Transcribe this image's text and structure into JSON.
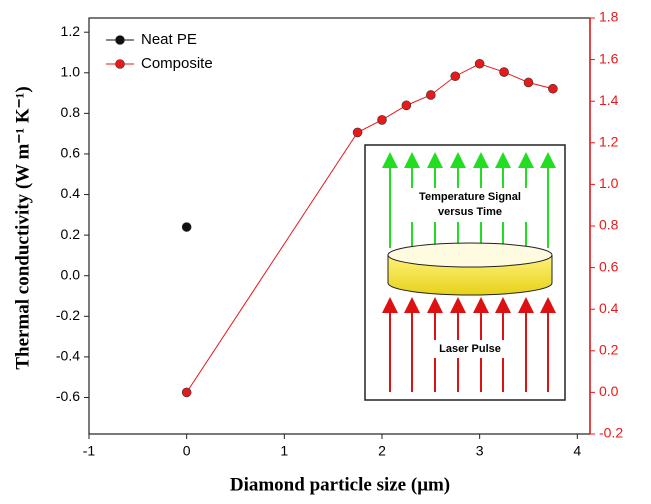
{
  "chart_data": {
    "type": "scatter",
    "xlabel": "Diamond particle size (μm)",
    "ylabel": "Thermal conductivity (W m⁻¹ K⁻¹)",
    "xlim": [
      -1,
      4.13
    ],
    "xticks": [
      -1,
      0,
      1,
      2,
      3,
      4
    ],
    "ylim": [
      -0.78,
      1.27
    ],
    "yticks": [
      -0.6,
      -0.4,
      -0.2,
      {
        "value": 0,
        "label": "0.0"
      },
      0.2,
      0.4,
      0.6,
      0.8,
      {
        "value": 1,
        "label": "1.0"
      },
      1.2
    ],
    "y2lim": [
      -0.2,
      1.8
    ],
    "y2ticks": [
      -0.2,
      {
        "value": 0,
        "label": "0.0"
      },
      0.2,
      0.4,
      0.6,
      0.8,
      {
        "value": 1,
        "label": "1.0"
      },
      1.2,
      1.4,
      1.6,
      1.8
    ],
    "y2color": "#e8191a",
    "legend": "upper left",
    "series": [
      {
        "name": "Neat PE",
        "color": "#111111",
        "x": [
          0
        ],
        "values": [
          0.24
        ]
      },
      {
        "name": "Composite",
        "color": "#e8191a",
        "axis": "y2",
        "line": true,
        "x": [
          0,
          1.75,
          2,
          2.25,
          2.5,
          2.75,
          3,
          3.25,
          3.5,
          3.75
        ],
        "values": [
          0,
          1.25,
          1.31,
          1.38,
          1.43,
          1.52,
          1.58,
          1.54,
          1.49,
          1.46
        ]
      }
    ],
    "annotations": [
      "Temperature Signal",
      "versus Time",
      "Laser Pulse"
    ]
  }
}
